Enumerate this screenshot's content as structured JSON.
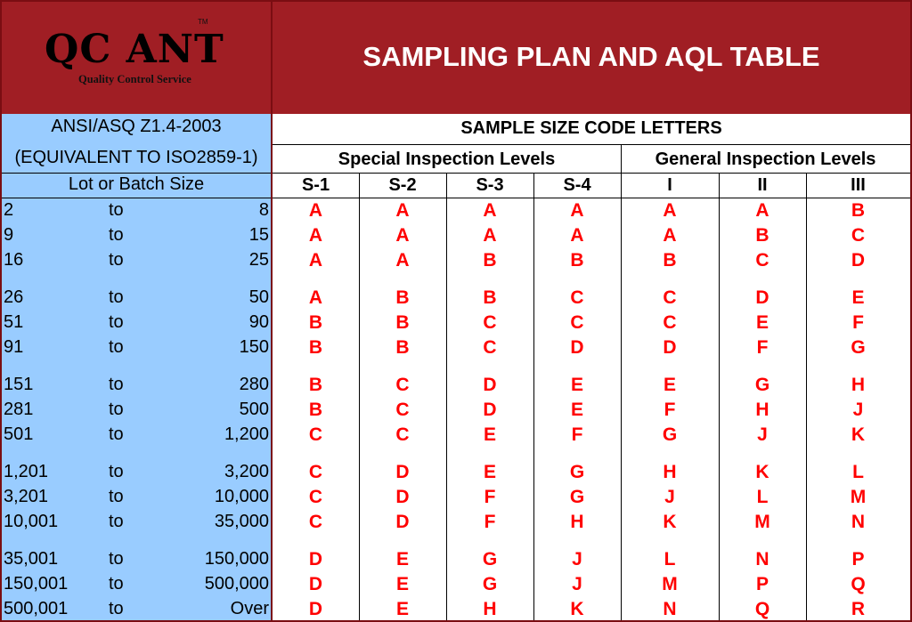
{
  "header": {
    "logo_main": "QC ANT",
    "logo_tm": "TM",
    "logo_sub": "Quality Control Service",
    "title": "SAMPLING PLAN AND AQL TABLE"
  },
  "left_header": {
    "standard": "ANSI/ASQ Z1.4-2003",
    "equivalent": "(EQUIVALENT TO ISO2859-1)",
    "lot_label": "Lot or Batch Size"
  },
  "table_header": {
    "title": "SAMPLE SIZE CODE LETTERS",
    "special": "Special Inspection Levels",
    "general": "General Inspection Levels",
    "columns": [
      "S-1",
      "S-2",
      "S-3",
      "S-4",
      "I",
      "II",
      "III"
    ]
  },
  "colors": {
    "header_bg": "#a01e24",
    "left_bg": "#99ccff",
    "code_color": "#ff0000"
  },
  "rows": [
    {
      "from": "2",
      "to": "to",
      "end": "8",
      "codes": [
        "A",
        "A",
        "A",
        "A",
        "A",
        "A",
        "B"
      ]
    },
    {
      "from": "9",
      "to": "to",
      "end": "15",
      "codes": [
        "A",
        "A",
        "A",
        "A",
        "A",
        "B",
        "C"
      ]
    },
    {
      "from": "16",
      "to": "to",
      "end": "25",
      "codes": [
        "A",
        "A",
        "B",
        "B",
        "B",
        "C",
        "D"
      ]
    },
    {
      "from": "26",
      "to": "to",
      "end": "50",
      "codes": [
        "A",
        "B",
        "B",
        "C",
        "C",
        "D",
        "E"
      ]
    },
    {
      "from": "51",
      "to": "to",
      "end": "90",
      "codes": [
        "B",
        "B",
        "C",
        "C",
        "C",
        "E",
        "F"
      ]
    },
    {
      "from": "91",
      "to": "to",
      "end": "150",
      "codes": [
        "B",
        "B",
        "C",
        "D",
        "D",
        "F",
        "G"
      ]
    },
    {
      "from": "151",
      "to": "to",
      "end": "280",
      "codes": [
        "B",
        "C",
        "D",
        "E",
        "E",
        "G",
        "H"
      ]
    },
    {
      "from": "281",
      "to": "to",
      "end": "500",
      "codes": [
        "B",
        "C",
        "D",
        "E",
        "F",
        "H",
        "J"
      ]
    },
    {
      "from": "501",
      "to": "to",
      "end": "1,200",
      "codes": [
        "C",
        "C",
        "E",
        "F",
        "G",
        "J",
        "K"
      ]
    },
    {
      "from": "1,201",
      "to": "to",
      "end": "3,200",
      "codes": [
        "C",
        "D",
        "E",
        "G",
        "H",
        "K",
        "L"
      ]
    },
    {
      "from": "3,201",
      "to": "to",
      "end": "10,000",
      "codes": [
        "C",
        "D",
        "F",
        "G",
        "J",
        "L",
        "M"
      ]
    },
    {
      "from": "10,001",
      "to": "to",
      "end": "35,000",
      "codes": [
        "C",
        "D",
        "F",
        "H",
        "K",
        "M",
        "N"
      ]
    },
    {
      "from": "35,001",
      "to": "to",
      "end": "150,000",
      "codes": [
        "D",
        "E",
        "G",
        "J",
        "L",
        "N",
        "P"
      ]
    },
    {
      "from": "150,001",
      "to": "to",
      "end": "500,000",
      "codes": [
        "D",
        "E",
        "G",
        "J",
        "M",
        "P",
        "Q"
      ]
    },
    {
      "from": "500,001",
      "to": "to",
      "end": "Over",
      "codes": [
        "D",
        "E",
        "H",
        "K",
        "N",
        "Q",
        "R"
      ]
    }
  ]
}
